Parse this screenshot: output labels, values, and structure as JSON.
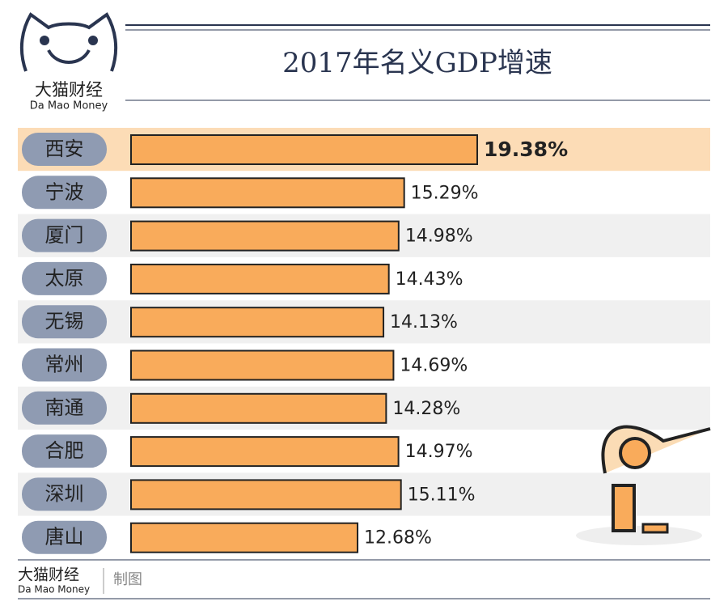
{
  "chart_data": {
    "type": "bar",
    "orientation": "horizontal",
    "title": "2017年名义GDP增速",
    "categories": [
      "西安",
      "宁波",
      "厦门",
      "太原",
      "无锡",
      "常州",
      "南通",
      "合肥",
      "深圳",
      "唐山"
    ],
    "values": [
      19.38,
      15.29,
      14.98,
      14.43,
      14.13,
      14.69,
      14.28,
      14.97,
      15.11,
      12.68
    ],
    "value_labels": [
      "19.38%",
      "15.29%",
      "14.98%",
      "14.43%",
      "14.13%",
      "14.69%",
      "14.28%",
      "14.97%",
      "15.11%",
      "12.68%"
    ],
    "color": "#f9ab5b",
    "highlight": "西安"
  },
  "logo": {
    "name": "大猫财经",
    "subtitle": "Da Mao Money"
  },
  "footer": {
    "name": "大猫财经",
    "subtitle": "Da Mao Money",
    "note": "制图"
  }
}
